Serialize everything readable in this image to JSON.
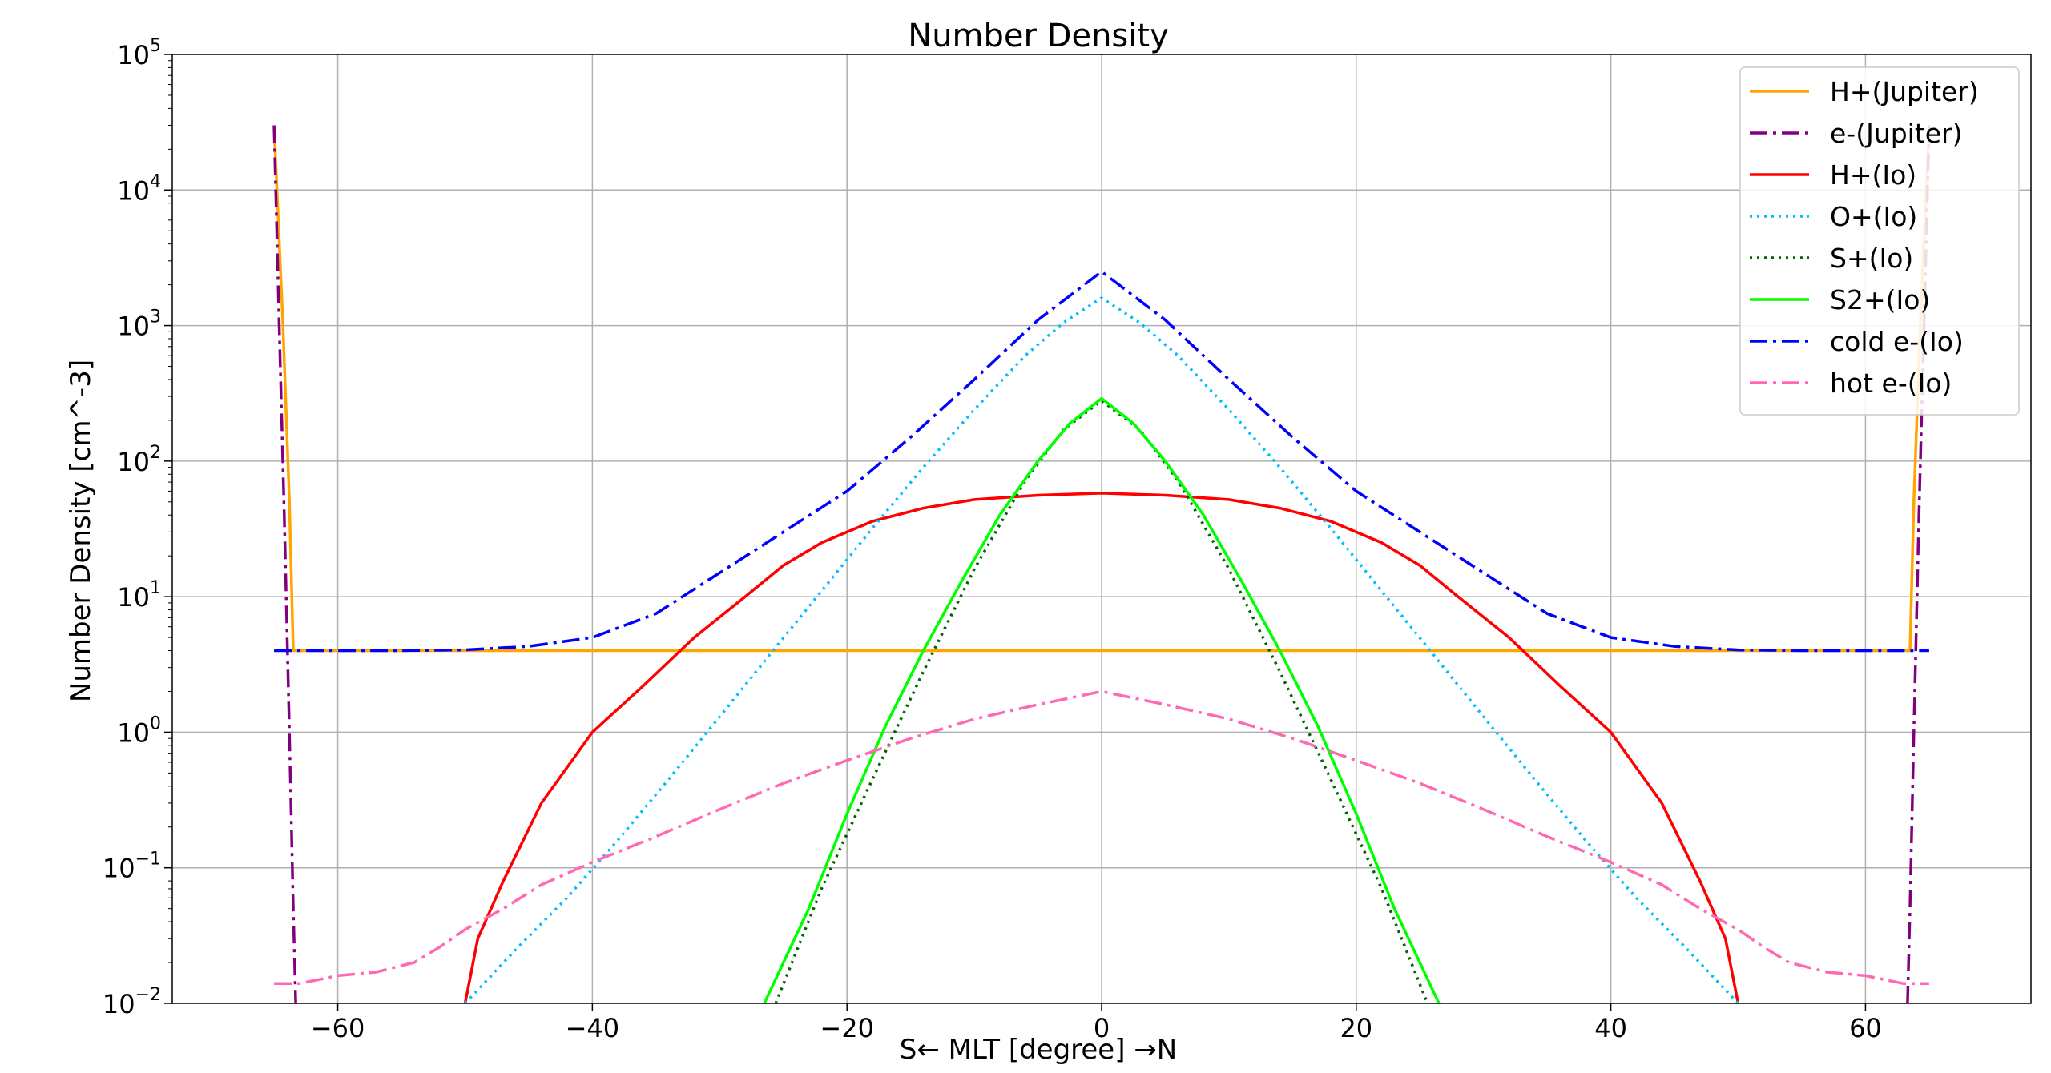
{
  "chart_data": {
    "type": "line",
    "title": "Number Density",
    "xlabel": "S← MLT [degree] →N",
    "ylabel": "Number Density [cm^-3]",
    "xlim": [
      -73,
      73
    ],
    "ylim": [
      0.01,
      100000
    ],
    "yscale": "log",
    "grid": true,
    "legend_position": "top-right",
    "x_ticks": [
      {
        "value": -60,
        "label": "−60"
      },
      {
        "value": -40,
        "label": "−40"
      },
      {
        "value": -20,
        "label": "−20"
      },
      {
        "value": 0,
        "label": "0"
      },
      {
        "value": 20,
        "label": "20"
      },
      {
        "value": 40,
        "label": "40"
      },
      {
        "value": 60,
        "label": "60"
      }
    ],
    "y_ticks": [
      {
        "value": 0.01,
        "base": "10",
        "exp": "−2"
      },
      {
        "value": 0.1,
        "base": "10",
        "exp": "−1"
      },
      {
        "value": 1,
        "base": "10",
        "exp": "0"
      },
      {
        "value": 10,
        "base": "10",
        "exp": "1"
      },
      {
        "value": 100,
        "base": "10",
        "exp": "2"
      },
      {
        "value": 1000,
        "base": "10",
        "exp": "3"
      },
      {
        "value": 10000,
        "base": "10",
        "exp": "4"
      },
      {
        "value": 100000,
        "base": "10",
        "exp": "5"
      }
    ],
    "series": [
      {
        "name": "H+(Jupiter)",
        "color": "#ffa500",
        "dash": "solid",
        "points": [
          [
            -65,
            30000
          ],
          [
            -64.3,
            1000
          ],
          [
            -63.8,
            50
          ],
          [
            -63.5,
            4
          ],
          [
            -40,
            4
          ],
          [
            0,
            4
          ],
          [
            40,
            4
          ],
          [
            63.5,
            4
          ],
          [
            63.8,
            50
          ],
          [
            64.3,
            1000
          ],
          [
            65,
            30000
          ]
        ]
      },
      {
        "name": "e-(Jupiter)",
        "color": "#800080",
        "dash": "dashdot",
        "points": [
          [
            -65,
            30000
          ],
          [
            -64.6,
            1000
          ],
          [
            -64.2,
            40
          ],
          [
            -63.8,
            1
          ],
          [
            -63.5,
            0.05
          ],
          [
            -63.3,
            0.01
          ]
        ]
      },
      {
        "name": "e-(Jupiter)",
        "color": "#800080",
        "dash": "dashdot",
        "legend": false,
        "points": [
          [
            63.3,
            0.01
          ],
          [
            63.5,
            0.05
          ],
          [
            63.8,
            1
          ],
          [
            64.2,
            40
          ],
          [
            64.6,
            1000
          ],
          [
            65,
            30000
          ]
        ]
      },
      {
        "name": "H+(Io)",
        "color": "#ff0000",
        "dash": "solid",
        "points": [
          [
            -50,
            0.01
          ],
          [
            -49,
            0.03
          ],
          [
            -47,
            0.08
          ],
          [
            -44,
            0.3
          ],
          [
            -40,
            1
          ],
          [
            -36,
            2.2
          ],
          [
            -32,
            5
          ],
          [
            -28,
            10
          ],
          [
            -25,
            17
          ],
          [
            -22,
            25
          ],
          [
            -18,
            36
          ],
          [
            -14,
            45
          ],
          [
            -10,
            52
          ],
          [
            -5,
            56
          ],
          [
            0,
            58
          ],
          [
            5,
            56
          ],
          [
            10,
            52
          ],
          [
            14,
            45
          ],
          [
            18,
            36
          ],
          [
            22,
            25
          ],
          [
            25,
            17
          ],
          [
            28,
            10
          ],
          [
            32,
            5
          ],
          [
            36,
            2.2
          ],
          [
            40,
            1
          ],
          [
            44,
            0.3
          ],
          [
            47,
            0.08
          ],
          [
            49,
            0.03
          ],
          [
            50,
            0.01
          ]
        ]
      },
      {
        "name": "O+(Io)",
        "color": "#00bfff",
        "dash": "dotted",
        "points": [
          [
            -50,
            0.01
          ],
          [
            -46,
            0.025
          ],
          [
            -42,
            0.06
          ],
          [
            -38,
            0.16
          ],
          [
            -34,
            0.45
          ],
          [
            -30,
            1.3
          ],
          [
            -26,
            3.8
          ],
          [
            -22,
            11
          ],
          [
            -18,
            32
          ],
          [
            -14,
            90
          ],
          [
            -10,
            240
          ],
          [
            -6,
            600
          ],
          [
            -3,
            1050
          ],
          [
            0,
            1600
          ],
          [
            3,
            1050
          ],
          [
            6,
            600
          ],
          [
            10,
            240
          ],
          [
            14,
            90
          ],
          [
            18,
            32
          ],
          [
            22,
            11
          ],
          [
            26,
            3.8
          ],
          [
            30,
            1.3
          ],
          [
            34,
            0.45
          ],
          [
            38,
            0.16
          ],
          [
            42,
            0.06
          ],
          [
            46,
            0.025
          ],
          [
            50,
            0.01
          ]
        ]
      },
      {
        "name": "S+(Io)",
        "color": "#006400",
        "dash": "dotted",
        "points": [
          [
            -25.6,
            0.01
          ],
          [
            -22,
            0.07
          ],
          [
            -18,
            0.45
          ],
          [
            -14,
            2.8
          ],
          [
            -10,
            16
          ],
          [
            -6,
            72
          ],
          [
            -3,
            170
          ],
          [
            0,
            280
          ],
          [
            3,
            170
          ],
          [
            6,
            72
          ],
          [
            10,
            16
          ],
          [
            14,
            2.8
          ],
          [
            18,
            0.45
          ],
          [
            22,
            0.07
          ],
          [
            25.6,
            0.01
          ]
        ]
      },
      {
        "name": "S2+(Io)",
        "color": "#00ff00",
        "dash": "solid",
        "points": [
          [
            -26.5,
            0.01
          ],
          [
            -23,
            0.05
          ],
          [
            -20,
            0.25
          ],
          [
            -17,
            1.1
          ],
          [
            -14,
            4
          ],
          [
            -11,
            13
          ],
          [
            -8,
            40
          ],
          [
            -5,
            100
          ],
          [
            -2.5,
            190
          ],
          [
            0,
            290
          ],
          [
            2.5,
            190
          ],
          [
            5,
            100
          ],
          [
            8,
            40
          ],
          [
            11,
            13
          ],
          [
            14,
            4
          ],
          [
            17,
            1.1
          ],
          [
            20,
            0.25
          ],
          [
            23,
            0.05
          ],
          [
            26.5,
            0.01
          ]
        ]
      },
      {
        "name": "cold e-(Io)",
        "color": "#0000ff",
        "dash": "dashdot",
        "points": [
          [
            -65,
            4
          ],
          [
            -55,
            4
          ],
          [
            -50,
            4.05
          ],
          [
            -45,
            4.3
          ],
          [
            -40,
            5
          ],
          [
            -35,
            7.5
          ],
          [
            -30,
            15
          ],
          [
            -25,
            30
          ],
          [
            -20,
            60
          ],
          [
            -15,
            150
          ],
          [
            -10,
            400
          ],
          [
            -5,
            1100
          ],
          [
            0,
            2500
          ],
          [
            5,
            1100
          ],
          [
            10,
            400
          ],
          [
            15,
            150
          ],
          [
            20,
            60
          ],
          [
            25,
            30
          ],
          [
            30,
            15
          ],
          [
            35,
            7.5
          ],
          [
            40,
            5
          ],
          [
            45,
            4.3
          ],
          [
            50,
            4.05
          ],
          [
            55,
            4
          ],
          [
            65,
            4
          ]
        ]
      },
      {
        "name": "hot e-(Io)",
        "color": "#ff69b4",
        "dash": "dashdot",
        "points": [
          [
            -65,
            0.014
          ],
          [
            -63,
            0.014
          ],
          [
            -60,
            0.016
          ],
          [
            -57,
            0.017
          ],
          [
            -54,
            0.02
          ],
          [
            -52,
            0.026
          ],
          [
            -50,
            0.035
          ],
          [
            -47,
            0.05
          ],
          [
            -44,
            0.075
          ],
          [
            -40,
            0.11
          ],
          [
            -35,
            0.17
          ],
          [
            -30,
            0.27
          ],
          [
            -25,
            0.42
          ],
          [
            -20,
            0.62
          ],
          [
            -15,
            0.9
          ],
          [
            -10,
            1.25
          ],
          [
            -5,
            1.6
          ],
          [
            0,
            2
          ],
          [
            5,
            1.6
          ],
          [
            10,
            1.25
          ],
          [
            15,
            0.9
          ],
          [
            20,
            0.62
          ],
          [
            25,
            0.42
          ],
          [
            30,
            0.27
          ],
          [
            35,
            0.17
          ],
          [
            40,
            0.11
          ],
          [
            44,
            0.075
          ],
          [
            47,
            0.05
          ],
          [
            50,
            0.035
          ],
          [
            52,
            0.026
          ],
          [
            54,
            0.02
          ],
          [
            57,
            0.017
          ],
          [
            60,
            0.016
          ],
          [
            63,
            0.014
          ],
          [
            65,
            0.014
          ]
        ]
      }
    ]
  }
}
